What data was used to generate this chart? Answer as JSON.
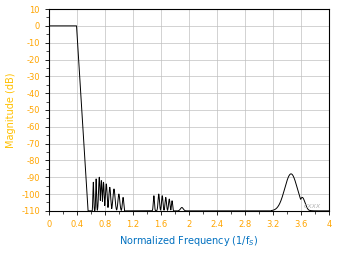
{
  "title": "",
  "xlabel": "Normalized Frequency (1/f$_S$)",
  "ylabel": "Magnitude (dB)",
  "xlim": [
    0,
    4
  ],
  "ylim": [
    -110,
    10
  ],
  "xticks": [
    0,
    0.4,
    0.8,
    1.2,
    1.6,
    2.0,
    2.4,
    2.8,
    3.2,
    3.6,
    4.0
  ],
  "yticks": [
    10,
    0,
    -10,
    -20,
    -30,
    -40,
    -50,
    -60,
    -70,
    -80,
    -90,
    -100,
    -110
  ],
  "xtick_labels": [
    "0",
    "0.4",
    "0.8",
    "1.2",
    "1.6",
    "2",
    "2.4",
    "2.8",
    "3.2",
    "3.6",
    "4"
  ],
  "ytick_labels": [
    "10",
    "0",
    "-10",
    "-20",
    "-30",
    "-40",
    "-50",
    "-60",
    "-70",
    "-80",
    "-90",
    "-100",
    "-110"
  ],
  "line_color": "#000000",
  "grid_color": "#c0c0c0",
  "axis_label_color_x": "#0070c0",
  "axis_label_color_y": "#ffc000",
  "tick_label_color": "#ffa500",
  "background_color": "#ffffff",
  "watermark": "CXXX",
  "watermark_color": "#b0b0b0"
}
